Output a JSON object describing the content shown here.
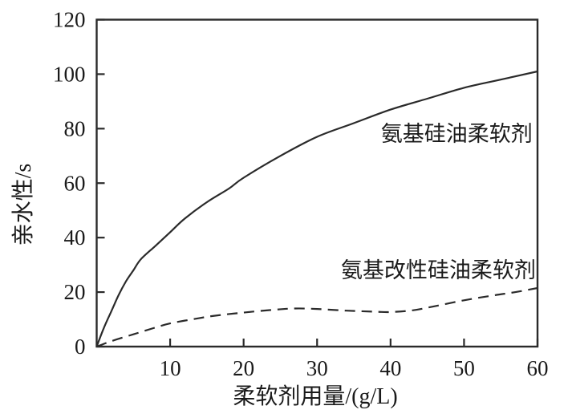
{
  "chart_data": {
    "type": "line",
    "title": "",
    "xlabel": "柔软剂用量/(g/L)",
    "ylabel": "亲水性/s",
    "xlim": [
      0,
      60
    ],
    "ylim": [
      0,
      120
    ],
    "x_ticks": [
      10,
      20,
      30,
      40,
      50,
      60
    ],
    "y_ticks": [
      0,
      20,
      40,
      60,
      80,
      100,
      120
    ],
    "grid": false,
    "legend_position": "inline-annotations",
    "frame": "full-box",
    "axis_color": "#2a2a2a",
    "text_color": "#1a1a1a",
    "series": [
      {
        "name": "氨基硅油柔软剂",
        "style": "solid",
        "color": "#2a2a2a",
        "label_pos": [
          49,
          78
        ],
        "points": [
          [
            0,
            0
          ],
          [
            1,
            7
          ],
          [
            2,
            13
          ],
          [
            3,
            19
          ],
          [
            4,
            24
          ],
          [
            5,
            28
          ],
          [
            6,
            32
          ],
          [
            8,
            37
          ],
          [
            10,
            42
          ],
          [
            12,
            47
          ],
          [
            15,
            53
          ],
          [
            18,
            58
          ],
          [
            20,
            62
          ],
          [
            25,
            70
          ],
          [
            30,
            77
          ],
          [
            35,
            82
          ],
          [
            40,
            87
          ],
          [
            45,
            91
          ],
          [
            50,
            95
          ],
          [
            55,
            98
          ],
          [
            60,
            101
          ]
        ]
      },
      {
        "name": "氨基改性硅油柔软剂",
        "style": "dashed",
        "color": "#2a2a2a",
        "label_pos": [
          46.5,
          28
        ],
        "points": [
          [
            0,
            0
          ],
          [
            2,
            2
          ],
          [
            5,
            4.5
          ],
          [
            8,
            7
          ],
          [
            10,
            8.5
          ],
          [
            13,
            10
          ],
          [
            16,
            11.3
          ],
          [
            20,
            12.5
          ],
          [
            24,
            13.5
          ],
          [
            27,
            14
          ],
          [
            30,
            13.8
          ],
          [
            34,
            13.2
          ],
          [
            38,
            12.8
          ],
          [
            40,
            12.7
          ],
          [
            43,
            13.3
          ],
          [
            46,
            14.8
          ],
          [
            50,
            17
          ],
          [
            54,
            18.8
          ],
          [
            57,
            20
          ],
          [
            60,
            21.5
          ]
        ]
      }
    ]
  }
}
